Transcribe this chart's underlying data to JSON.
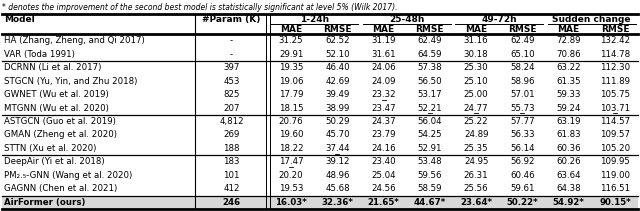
{
  "caption": "* denotes the improvement of the second best model is statistically significant at level 5% (Wilk 2017).",
  "rows": [
    {
      "model": "HA (Zhang, Zheng, and Qi 2017)",
      "param": "-",
      "vals": [
        "31.25",
        "62.52",
        "31.19",
        "62.49",
        "31.16",
        "62.49",
        "72.89",
        "132.42"
      ],
      "bold": [],
      "underline": [],
      "group": 0
    },
    {
      "model": "VAR (Toda 1991)",
      "param": "-",
      "vals": [
        "29.91",
        "52.10",
        "31.61",
        "64.59",
        "30.18",
        "65.10",
        "70.86",
        "114.78"
      ],
      "bold": [],
      "underline": [],
      "group": 0
    },
    {
      "model": "DCRNN (Li et al. 2017)",
      "param": "397",
      "vals": [
        "19.35",
        "46.40",
        "24.06",
        "57.38",
        "25.30",
        "58.24",
        "63.22",
        "112.30"
      ],
      "bold": [],
      "underline": [],
      "group": 1
    },
    {
      "model": "STGCN (Yu, Yin, and Zhu 2018)",
      "param": "453",
      "vals": [
        "19.06",
        "42.69",
        "24.09",
        "56.50",
        "25.10",
        "58.96",
        "61.35",
        "111.89"
      ],
      "bold": [],
      "underline": [],
      "group": 1
    },
    {
      "model": "GWNET (Wu et al. 2019)",
      "param": "825",
      "vals": [
        "17.79",
        "39.49",
        "23.32",
        "53.17",
        "25.00",
        "57.01",
        "59.33",
        "105.75"
      ],
      "bold": [],
      "underline": [
        2
      ],
      "group": 1
    },
    {
      "model": "MTGNN (Wu et al. 2020)",
      "param": "207",
      "vals": [
        "18.15",
        "38.99",
        "23.47",
        "52.21",
        "24.77",
        "55.73",
        "59.24",
        "103.71"
      ],
      "bold": [],
      "underline": [
        3,
        4,
        5,
        7
      ],
      "group": 1
    },
    {
      "model": "ASTGCN (Guo et al. 2019)",
      "param": "4,812",
      "vals": [
        "20.76",
        "50.29",
        "24.37",
        "56.04",
        "25.22",
        "57.77",
        "63.19",
        "114.57"
      ],
      "bold": [],
      "underline": [],
      "group": 2
    },
    {
      "model": "GMAN (Zheng et al. 2020)",
      "param": "269",
      "vals": [
        "19.60",
        "45.70",
        "23.79",
        "54.25",
        "24.89",
        "56.33",
        "61.83",
        "109.57"
      ],
      "bold": [],
      "underline": [],
      "group": 2
    },
    {
      "model": "STTN (Xu et al. 2020)",
      "param": "188",
      "vals": [
        "18.22",
        "37.44",
        "24.16",
        "52.91",
        "25.35",
        "56.14",
        "60.36",
        "105.20"
      ],
      "bold": [],
      "underline": [
        1
      ],
      "group": 2
    },
    {
      "model": "DeepAir (Yi et al. 2018)",
      "param": "183",
      "vals": [
        "17.47",
        "39.12",
        "23.40",
        "53.48",
        "24.95",
        "56.92",
        "60.26",
        "109.95"
      ],
      "bold": [],
      "underline": [
        0
      ],
      "group": 3
    },
    {
      "model": "PM₂.₅-GNN (Wang et al. 2020)",
      "param": "101",
      "vals": [
        "20.20",
        "48.96",
        "25.04",
        "59.56",
        "26.31",
        "60.46",
        "63.64",
        "119.00"
      ],
      "bold": [],
      "underline": [],
      "group": 3
    },
    {
      "model": "GAGNN (Chen et al. 2021)",
      "param": "412",
      "vals": [
        "19.53",
        "45.68",
        "24.56",
        "58.59",
        "25.56",
        "59.61",
        "64.38",
        "116.51"
      ],
      "bold": [],
      "underline": [],
      "group": 3
    },
    {
      "model": "AirFormer (ours)",
      "param": "246",
      "vals": [
        "16.03*",
        "32.36*",
        "21.65*",
        "44.67*",
        "23.64*",
        "50.22*",
        "54.92*",
        "90.15*"
      ],
      "bold": [
        0,
        1,
        2,
        3,
        4,
        5,
        6,
        7
      ],
      "underline": [],
      "group": 4
    }
  ],
  "group_sep_after": [
    1,
    5,
    8,
    11
  ],
  "bg_color": "#ffffff"
}
